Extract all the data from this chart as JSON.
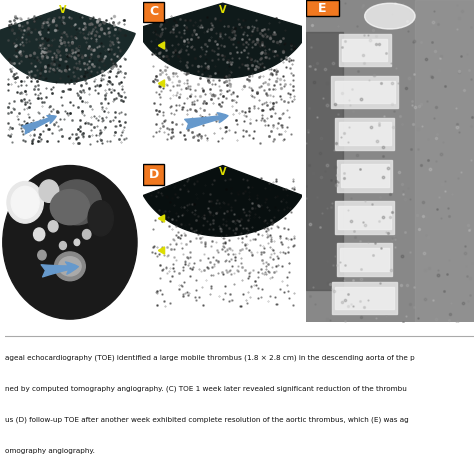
{
  "figure_bg": "#ffffff",
  "image_area_bg": "#ffffff",
  "panel_bg": "#000000",
  "panel_border_color": "#cccccc",
  "label_bg_orange": "#f07820",
  "label_text": "#ffffff",
  "arrow_color": "#6699cc",
  "caption_lines": [
    "ageal echocardiography (TOE) identified a large mobile thrombus (1.8 × 2.8 cm) in the descending aorta of the p",
    "ned by computed tomography angiography. (C) TOE 1 week later revealed significant reduction of the thrombu",
    "us (D) follow-up TOE after another week exhibited complete resolution of the aortic thrombus, which (E) was ag",
    "omography angiography."
  ],
  "panel_labels": [
    "C",
    "D",
    "E"
  ],
  "fig_width": 4.74,
  "fig_height": 4.74,
  "dpi": 100
}
